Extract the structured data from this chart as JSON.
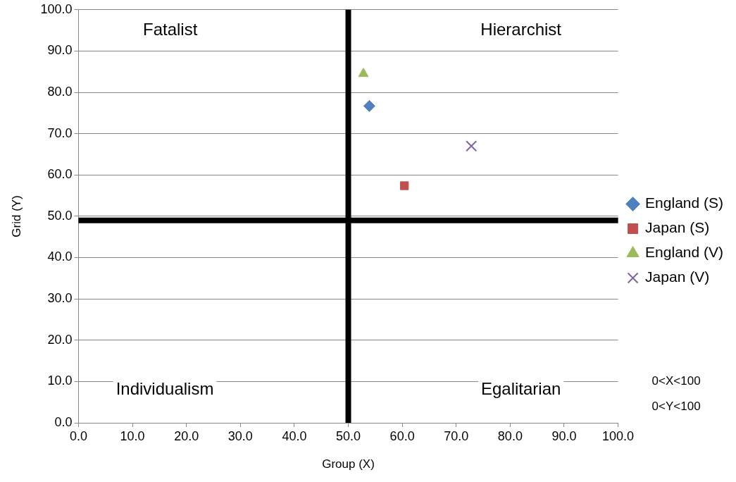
{
  "chart_data": {
    "type": "scatter",
    "xlabel": "Group (X)",
    "ylabel": "Grid (Y)",
    "xlim": [
      0,
      100
    ],
    "ylim": [
      0,
      100
    ],
    "xticks": [
      {
        "value": 0,
        "label": "0.0"
      },
      {
        "value": 10,
        "label": "10.0"
      },
      {
        "value": 20,
        "label": "20.0"
      },
      {
        "value": 30,
        "label": "30.0"
      },
      {
        "value": 40,
        "label": "40.0"
      },
      {
        "value": 50,
        "label": "50.0"
      },
      {
        "value": 60,
        "label": "60.0"
      },
      {
        "value": 70,
        "label": "70.0"
      },
      {
        "value": 80,
        "label": "80.0"
      },
      {
        "value": 90,
        "label": "90.0"
      },
      {
        "value": 100,
        "label": "100.0"
      }
    ],
    "yticks": [
      {
        "value": 0,
        "label": "0.0"
      },
      {
        "value": 10,
        "label": "10.0"
      },
      {
        "value": 20,
        "label": "20.0"
      },
      {
        "value": 30,
        "label": "30.0"
      },
      {
        "value": 40,
        "label": "40.0"
      },
      {
        "value": 50,
        "label": "50.0"
      },
      {
        "value": 60,
        "label": "60.0"
      },
      {
        "value": 70,
        "label": "70.0"
      },
      {
        "value": 80,
        "label": "80.0"
      },
      {
        "value": 90,
        "label": "90.0"
      },
      {
        "value": 100,
        "label": "100.0"
      }
    ],
    "grid": "y",
    "legend": "right",
    "series": [
      {
        "name": "England (S)",
        "color": "#4f81bd",
        "marker": "diamond",
        "x": [
          53.9
        ],
        "values": [
          76.7
        ]
      },
      {
        "name": "Japan (S)",
        "color": "#c0504d",
        "marker": "square",
        "x": [
          60.4
        ],
        "values": [
          57.4
        ]
      },
      {
        "name": "England (V)",
        "color": "#9bbb59",
        "marker": "triangle",
        "x": [
          52.8
        ],
        "values": [
          84.5
        ]
      },
      {
        "name": "Japan (V)",
        "color": "#8064a2",
        "marker": "cross",
        "x": [
          72.8
        ],
        "values": [
          67.0
        ]
      }
    ],
    "ref_lines": [
      {
        "axis": "x",
        "value": 50,
        "color": "#000000"
      },
      {
        "axis": "y",
        "value": 49,
        "color": "#000000"
      }
    ],
    "annotations": [
      "Fatalist",
      "Hierarchist",
      "Individualism",
      "Egalitarian",
      "0<X<100",
      "0<Y<100"
    ]
  }
}
